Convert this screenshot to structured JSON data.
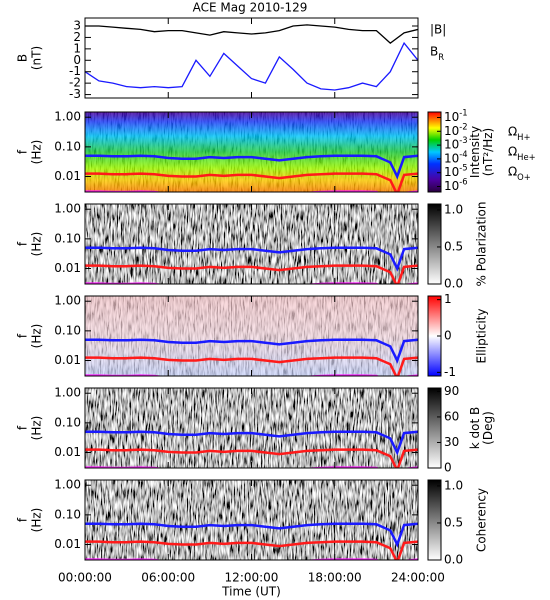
{
  "chart_data": [
    {
      "type": "line",
      "title": "ACE Mag 2010-129",
      "ylabel": [
        "B",
        "(nT)"
      ],
      "x": [
        0,
        1,
        2,
        3,
        4,
        5,
        6,
        7,
        8,
        9,
        10,
        11,
        12,
        13,
        14,
        15,
        16,
        17,
        18,
        19,
        20,
        21,
        22,
        23,
        24
      ],
      "ylim": [
        -3.3,
        3.7
      ],
      "yticks": [
        -3,
        -2,
        -1,
        0,
        1,
        2,
        3
      ],
      "series": [
        {
          "name": "|B|",
          "color": "#000000",
          "values": [
            3.0,
            3.0,
            2.9,
            2.8,
            2.7,
            2.5,
            2.6,
            2.6,
            2.4,
            2.2,
            2.5,
            2.4,
            2.3,
            2.4,
            2.6,
            3.0,
            3.1,
            3.0,
            2.9,
            2.7,
            2.6,
            2.6,
            1.5,
            2.4,
            2.7
          ]
        },
        {
          "name": "B_R",
          "color": "#1a1aff",
          "values": [
            -1.0,
            -1.8,
            -2.0,
            -2.3,
            -2.4,
            -2.3,
            -2.4,
            -2.3,
            0.0,
            -1.4,
            0.6,
            -0.5,
            -1.6,
            -2.0,
            0.3,
            -0.8,
            -2.0,
            -2.5,
            -2.6,
            -2.4,
            -2.0,
            -2.3,
            -1.0,
            1.5,
            0.0
          ]
        }
      ]
    },
    {
      "type": "spectrogram",
      "ylabel": [
        "f",
        "(Hz)"
      ],
      "ylim": [
        0.003,
        1.5
      ],
      "log_y": true,
      "yticks": [
        {
          "value": 0.01,
          "label": "0.01"
        },
        {
          "value": 0.1,
          "label": "0.10"
        },
        {
          "value": 1,
          "label": "1.00"
        }
      ],
      "colormap": "rainbow",
      "cbar_label": [
        "Intensity",
        "(nT²/Hz)"
      ],
      "cbar_lim": [
        4e-07,
        0.25
      ],
      "cbar_log": true,
      "cbar_ticks": [
        {
          "value": 0.1,
          "label": "10^-1"
        },
        {
          "value": 0.01,
          "label": "10^-2"
        },
        {
          "value": 0.001,
          "label": "10^-3"
        },
        {
          "value": 0.0001,
          "label": "10^-4"
        },
        {
          "value": 1e-05,
          "label": "10^-5"
        },
        {
          "value": 1e-06,
          "label": "10^-6"
        }
      ],
      "x": [
        0,
        1,
        2,
        3,
        4,
        5,
        6,
        7,
        8,
        9,
        10,
        11,
        12,
        13,
        14,
        15,
        16,
        17,
        18,
        19,
        20,
        21,
        22,
        22.5,
        23,
        24
      ],
      "series": [
        {
          "name": "Ω_H+",
          "color": "#1a1aff",
          "values": [
            0.05,
            0.05,
            0.048,
            0.048,
            0.05,
            0.048,
            0.042,
            0.04,
            0.04,
            0.045,
            0.042,
            0.045,
            0.045,
            0.04,
            0.035,
            0.04,
            0.045,
            0.048,
            0.05,
            0.05,
            0.05,
            0.048,
            0.03,
            0.01,
            0.045,
            0.05
          ]
        },
        {
          "name": "Ω_He+",
          "color": "#ff1a1a",
          "values": [
            0.0125,
            0.0125,
            0.012,
            0.012,
            0.0125,
            0.012,
            0.0105,
            0.01,
            0.01,
            0.0113,
            0.0105,
            0.0113,
            0.0113,
            0.01,
            0.0088,
            0.01,
            0.0113,
            0.012,
            0.0125,
            0.0125,
            0.0125,
            0.012,
            0.0075,
            0.0025,
            0.0113,
            0.0125
          ]
        },
        {
          "name": "Ω_O+",
          "color": "#ff1aff",
          "values": [
            0.0031,
            0.0031,
            0.003,
            0.003,
            0.0031,
            0.003,
            0.0026,
            0.0025,
            0.0025,
            0.0028,
            0.0026,
            0.0028,
            0.0028,
            0.0025,
            0.0022,
            0.0025,
            0.0028,
            0.003,
            0.0031,
            0.0031,
            0.0031,
            0.003,
            0.0019,
            0.0006,
            0.0028,
            0.0031
          ]
        }
      ]
    },
    {
      "type": "spectrogram",
      "ylabel": [
        "f",
        "(Hz)"
      ],
      "ylim": [
        0.003,
        1.5
      ],
      "log_y": true,
      "yticks": [
        {
          "value": 0.01,
          "label": "0.01"
        },
        {
          "value": 0.1,
          "label": "0.10"
        },
        {
          "value": 1,
          "label": "1.00"
        }
      ],
      "colormap": "gray_r",
      "cbar_label": [
        "% Polarization"
      ],
      "cbar_lim": [
        0,
        1.08
      ],
      "cbar_ticks": [
        {
          "value": 0,
          "label": "0.0"
        },
        {
          "value": 0.5,
          "label": "0.5"
        },
        {
          "value": 1,
          "label": "1.0"
        }
      ]
    },
    {
      "type": "spectrogram",
      "ylabel": [
        "f",
        "(Hz)"
      ],
      "ylim": [
        0.003,
        1.5
      ],
      "log_y": true,
      "yticks": [
        {
          "value": 0.01,
          "label": "0.01"
        },
        {
          "value": 0.1,
          "label": "0.10"
        },
        {
          "value": 1,
          "label": "1.00"
        }
      ],
      "colormap": "bwr",
      "cbar_label": [
        "Ellipticity"
      ],
      "cbar_lim": [
        -1.1,
        1.1
      ],
      "cbar_ticks": [
        -1,
        0,
        1
      ]
    },
    {
      "type": "spectrogram",
      "ylabel": [
        "f",
        "(Hz)"
      ],
      "ylim": [
        0.003,
        1.5
      ],
      "log_y": true,
      "yticks": [
        {
          "value": 0.01,
          "label": "0.01"
        },
        {
          "value": 0.1,
          "label": "0.10"
        },
        {
          "value": 1,
          "label": "1.00"
        }
      ],
      "colormap": "gray_r",
      "cbar_label": [
        "k dot B",
        "(Deg)"
      ],
      "cbar_lim": [
        0,
        94
      ],
      "cbar_ticks": [
        0,
        30,
        60,
        90
      ]
    },
    {
      "type": "spectrogram",
      "ylabel": [
        "f",
        "(Hz)"
      ],
      "ylim": [
        0.003,
        1.5
      ],
      "log_y": true,
      "yticks": [
        {
          "value": 0.01,
          "label": "0.01"
        },
        {
          "value": 0.1,
          "label": "0.10"
        },
        {
          "value": 1,
          "label": "1.00"
        }
      ],
      "colormap": "gray_r",
      "cbar_label": [
        "Coherency"
      ],
      "cbar_lim": [
        0,
        1.08
      ],
      "cbar_ticks": [
        {
          "value": 0,
          "label": "0.0"
        },
        {
          "value": 0.5,
          "label": "0.5"
        },
        {
          "value": 1,
          "label": "1.0"
        }
      ],
      "x_label": "Time (UT)",
      "xlim": [
        0,
        24
      ],
      "xticks": [
        {
          "value": 0,
          "label": "00:00:00"
        },
        {
          "value": 6,
          "label": "06:00:00"
        },
        {
          "value": 12,
          "label": "12:00:00"
        },
        {
          "value": 18,
          "label": "18:00:00"
        },
        {
          "value": 24,
          "label": "24:00:00"
        }
      ]
    }
  ]
}
